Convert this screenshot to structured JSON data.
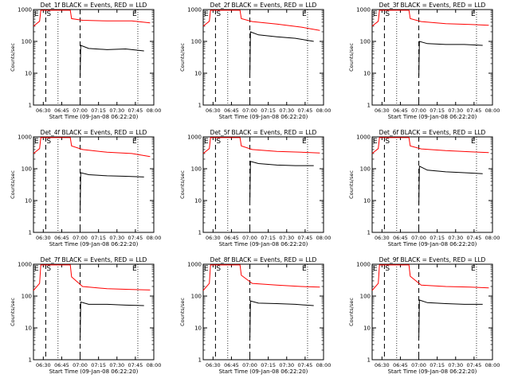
{
  "chart_data": [
    {
      "type": "line",
      "title": "Det_1f BLACK = Events, RED = LLD",
      "xlabel": "Start Time (09-Jan-08 06:22:20)",
      "ylabel": "Counts/sec",
      "x_ticks": [
        "06:30",
        "06:45",
        "07:00",
        "07:15",
        "07:30",
        "07:45",
        "08:00"
      ],
      "y_ticks": [
        "1",
        "10",
        "100",
        "1000"
      ],
      "ylim": [
        1,
        1000
      ],
      "y_scale": "log",
      "markers": {
        "E_start": "06:22",
        "S": "06:32",
        "E_end": "07:47"
      },
      "dashed_lines": [
        "06:32",
        "07:00"
      ],
      "dotted_lines": [
        "06:42",
        "07:47"
      ],
      "series": [
        {
          "color": "#ff0000",
          "x_minutes": [
            0,
            5,
            6,
            7,
            30,
            31,
            40,
            60,
            80,
            95
          ],
          "y": [
            300,
            430,
            950,
            950,
            950,
            520,
            460,
            440,
            440,
            380
          ]
        },
        {
          "color": "#000000",
          "x_minutes": [
            38,
            38.5,
            45,
            60,
            75,
            90
          ],
          "y": [
            8,
            75,
            60,
            55,
            58,
            50
          ]
        }
      ]
    },
    {
      "type": "line",
      "title": "Det_2f BLACK = Events, RED = LLD",
      "xlabel": "Start Time (09-Jan-08 06:22:20)",
      "ylabel": "Counts/sec",
      "x_ticks": [
        "06:30",
        "06:45",
        "07:00",
        "07:15",
        "07:30",
        "07:45",
        "08:00"
      ],
      "y_ticks": [
        "1",
        "10",
        "100",
        "1000"
      ],
      "ylim": [
        1,
        1000
      ],
      "y_scale": "log",
      "markers": {
        "E_start": "06:22",
        "S": "06:32",
        "E_end": "07:47"
      },
      "dashed_lines": [
        "06:32",
        "07:00"
      ],
      "dotted_lines": [
        "06:42",
        "07:47"
      ],
      "series": [
        {
          "color": "#ff0000",
          "x_minutes": [
            0,
            5,
            6,
            7,
            30,
            31,
            40,
            60,
            80,
            95
          ],
          "y": [
            300,
            430,
            950,
            950,
            950,
            520,
            420,
            350,
            280,
            220
          ]
        },
        {
          "color": "#000000",
          "x_minutes": [
            38,
            38.5,
            45,
            60,
            75,
            90
          ],
          "y": [
            10,
            200,
            160,
            140,
            125,
            100
          ]
        }
      ]
    },
    {
      "type": "line",
      "title": "Det_3f BLACK = Events, RED = LLD",
      "xlabel": "Start Time (09-Jan-08 06:22:20)",
      "ylabel": "Counts/sec",
      "x_ticks": [
        "06:30",
        "06:45",
        "07:00",
        "07:15",
        "07:30",
        "07:45",
        "08:00"
      ],
      "y_ticks": [
        "1",
        "10",
        "100",
        "1000"
      ],
      "ylim": [
        1,
        1000
      ],
      "y_scale": "log",
      "markers": {
        "E_start": "06:22",
        "S": "06:32",
        "E_end": "07:47"
      },
      "dashed_lines": [
        "06:32",
        "07:00"
      ],
      "dotted_lines": [
        "06:42",
        "07:47"
      ],
      "series": [
        {
          "color": "#ff0000",
          "x_minutes": [
            0,
            5,
            6,
            7,
            30,
            31,
            40,
            60,
            80,
            95
          ],
          "y": [
            300,
            430,
            950,
            950,
            950,
            520,
            420,
            360,
            340,
            320
          ]
        },
        {
          "color": "#000000",
          "x_minutes": [
            38,
            38.5,
            45,
            60,
            75,
            90
          ],
          "y": [
            8,
            100,
            85,
            80,
            80,
            75
          ]
        }
      ]
    },
    {
      "type": "line",
      "title": "Det_4f BLACK = Events, RED = LLD",
      "xlabel": "Start Time (09-Jan-08 06:22:20)",
      "ylabel": "Counts/sec",
      "x_ticks": [
        "06:30",
        "06:45",
        "07:00",
        "07:15",
        "07:30",
        "07:45",
        "08:00"
      ],
      "y_ticks": [
        "1",
        "10",
        "100",
        "1000"
      ],
      "ylim": [
        1,
        1000
      ],
      "y_scale": "log",
      "markers": {
        "E_start": "06:22",
        "S": "06:32",
        "E_end": "07:47"
      },
      "dashed_lines": [
        "06:32",
        "07:00"
      ],
      "dotted_lines": [
        "06:42",
        "07:47"
      ],
      "series": [
        {
          "color": "#ff0000",
          "x_minutes": [
            0,
            5,
            6,
            7,
            30,
            31,
            40,
            60,
            80,
            95
          ],
          "y": [
            300,
            430,
            950,
            950,
            950,
            520,
            400,
            330,
            300,
            240
          ]
        },
        {
          "color": "#000000",
          "x_minutes": [
            38,
            38.5,
            45,
            60,
            75,
            90
          ],
          "y": [
            5,
            75,
            65,
            60,
            58,
            55
          ]
        }
      ]
    },
    {
      "type": "line",
      "title": "Det_5f BLACK = Events, RED = LLD",
      "xlabel": "Start Time (09-Jan-08 06:22:20)",
      "ylabel": "Counts/sec",
      "x_ticks": [
        "06:30",
        "06:45",
        "07:00",
        "07:15",
        "07:30",
        "07:45",
        "08:00"
      ],
      "y_ticks": [
        "1",
        "10",
        "100",
        "1000"
      ],
      "ylim": [
        1,
        1000
      ],
      "y_scale": "log",
      "markers": {
        "E_start": "06:22",
        "S": "06:32",
        "E_end": "07:47"
      },
      "dashed_lines": [
        "06:32",
        "07:00"
      ],
      "dotted_lines": [
        "06:42",
        "07:47"
      ],
      "series": [
        {
          "color": "#ff0000",
          "x_minutes": [
            0,
            5,
            6,
            7,
            30,
            31,
            40,
            60,
            80,
            95
          ],
          "y": [
            300,
            430,
            950,
            950,
            950,
            520,
            400,
            350,
            330,
            310
          ]
        },
        {
          "color": "#000000",
          "x_minutes": [
            38,
            38.5,
            45,
            60,
            75,
            90
          ],
          "y": [
            10,
            170,
            145,
            130,
            125,
            125
          ]
        }
      ]
    },
    {
      "type": "line",
      "title": "Det_6f BLACK = Events, RED = LLD",
      "xlabel": "Start Time (09-Jan-08 06:22:20)",
      "ylabel": "Counts/sec",
      "x_ticks": [
        "06:30",
        "06:45",
        "07:00",
        "07:15",
        "07:30",
        "07:45",
        "08:00"
      ],
      "y_ticks": [
        "1",
        "10",
        "100",
        "1000"
      ],
      "ylim": [
        1,
        1000
      ],
      "y_scale": "log",
      "markers": {
        "E_start": "06:22",
        "S": "06:32",
        "E_end": "07:47"
      },
      "dashed_lines": [
        "06:32",
        "07:00"
      ],
      "dotted_lines": [
        "06:42",
        "07:47"
      ],
      "series": [
        {
          "color": "#ff0000",
          "x_minutes": [
            0,
            5,
            6,
            7,
            30,
            31,
            40,
            60,
            80,
            95
          ],
          "y": [
            300,
            430,
            950,
            950,
            950,
            520,
            420,
            370,
            340,
            320
          ]
        },
        {
          "color": "#000000",
          "x_minutes": [
            38,
            38.5,
            45,
            60,
            75,
            90
          ],
          "y": [
            7,
            120,
            90,
            80,
            75,
            70
          ]
        }
      ]
    },
    {
      "type": "line",
      "title": "Det_7f BLACK = Events, RED = LLD",
      "xlabel": "Start Time (09-Jan-08 06:22:20)",
      "ylabel": "Counts/sec",
      "x_ticks": [
        "06:30",
        "06:45",
        "07:00",
        "07:15",
        "07:30",
        "07:45",
        "08:00"
      ],
      "y_ticks": [
        "1",
        "10",
        "100",
        "1000"
      ],
      "ylim": [
        1,
        1000
      ],
      "y_scale": "log",
      "markers": {
        "E_start": "06:22",
        "S": "06:32",
        "E_end": "07:47"
      },
      "dashed_lines": [
        "06:32",
        "07:00"
      ],
      "dotted_lines": [
        "06:42",
        "07:47"
      ],
      "series": [
        {
          "color": "#ff0000",
          "x_minutes": [
            0,
            5,
            6,
            7,
            30,
            31,
            40,
            60,
            80,
            95
          ],
          "y": [
            150,
            250,
            950,
            950,
            950,
            400,
            200,
            170,
            160,
            155
          ]
        },
        {
          "color": "#000000",
          "x_minutes": [
            38,
            38.5,
            45,
            60,
            75,
            90
          ],
          "y": [
            5,
            65,
            55,
            55,
            52,
            50
          ]
        }
      ]
    },
    {
      "type": "line",
      "title": "Det_8f BLACK = Events, RED = LLD",
      "xlabel": "Start Time (09-Jan-08 06:22:20)",
      "ylabel": "Counts/sec",
      "x_ticks": [
        "06:30",
        "06:45",
        "07:00",
        "07:15",
        "07:30",
        "07:45",
        "08:00"
      ],
      "y_ticks": [
        "1",
        "10",
        "100",
        "1000"
      ],
      "ylim": [
        1,
        1000
      ],
      "y_scale": "log",
      "markers": {
        "E_start": "06:22",
        "S": "06:32",
        "E_end": "07:47"
      },
      "dashed_lines": [
        "06:32",
        "07:00"
      ],
      "dotted_lines": [
        "06:42",
        "07:47"
      ],
      "series": [
        {
          "color": "#ff0000",
          "x_minutes": [
            0,
            5,
            6,
            7,
            30,
            31,
            40,
            60,
            80,
            95
          ],
          "y": [
            150,
            250,
            950,
            950,
            950,
            450,
            250,
            220,
            200,
            190
          ]
        },
        {
          "color": "#000000",
          "x_minutes": [
            38,
            38.5,
            45,
            60,
            75,
            90
          ],
          "y": [
            5,
            70,
            60,
            58,
            55,
            50
          ]
        }
      ]
    },
    {
      "type": "line",
      "title": "Det_9f BLACK = Events, RED = LLD",
      "xlabel": "Start Time (09-Jan-08 06:22:20)",
      "ylabel": "Counts/sec",
      "x_ticks": [
        "06:30",
        "06:45",
        "07:00",
        "07:15",
        "07:30",
        "07:45",
        "08:00"
      ],
      "y_ticks": [
        "1",
        "10",
        "100",
        "1000"
      ],
      "ylim": [
        1,
        1000
      ],
      "y_scale": "log",
      "markers": {
        "E_start": "06:22",
        "S": "06:32",
        "E_end": "07:47"
      },
      "dashed_lines": [
        "06:32",
        "07:00"
      ],
      "dotted_lines": [
        "06:42",
        "07:47"
      ],
      "series": [
        {
          "color": "#ff0000",
          "x_minutes": [
            0,
            5,
            6,
            7,
            30,
            31,
            40,
            60,
            80,
            95
          ],
          "y": [
            150,
            250,
            950,
            950,
            950,
            420,
            220,
            200,
            190,
            180
          ]
        },
        {
          "color": "#000000",
          "x_minutes": [
            38,
            38.5,
            45,
            60,
            75,
            90
          ],
          "y": [
            5,
            75,
            62,
            58,
            55,
            55
          ]
        }
      ]
    }
  ]
}
